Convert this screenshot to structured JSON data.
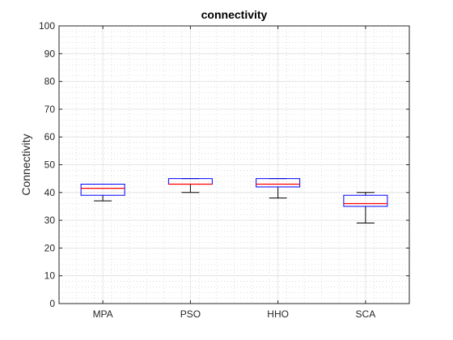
{
  "chart_data": {
    "type": "box",
    "title": "connectivity",
    "xlabel": "",
    "ylabel": "Connectivity",
    "ylim": [
      0,
      100
    ],
    "yticks": [
      0,
      10,
      20,
      30,
      40,
      50,
      60,
      70,
      80,
      90,
      100
    ],
    "grid": true,
    "minor_grid": true,
    "categories": [
      "MPA",
      "PSO",
      "HHO",
      "SCA"
    ],
    "boxes": [
      {
        "label": "MPA",
        "min": 37,
        "q1": 39,
        "median": 41.5,
        "q3": 43,
        "max": 43
      },
      {
        "label": "PSO",
        "min": 40,
        "q1": 43,
        "median": 43,
        "q3": 45,
        "max": 45
      },
      {
        "label": "HHO",
        "min": 38,
        "q1": 42,
        "median": 43,
        "q3": 45,
        "max": 45
      },
      {
        "label": "SCA",
        "min": 29,
        "q1": 35,
        "median": 36,
        "q3": 39,
        "max": 40
      }
    ],
    "colors": {
      "box": "#0000ff",
      "median": "#ff0000",
      "whisker": "#000000",
      "axes": "#262626",
      "grid": "#dfdfdf"
    }
  }
}
